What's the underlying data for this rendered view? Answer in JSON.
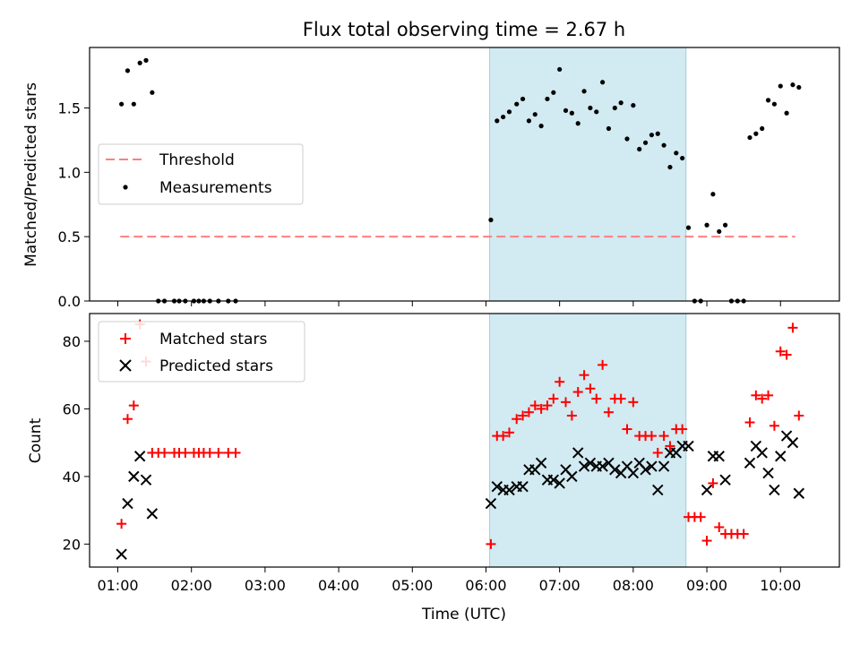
{
  "chart_data": [
    {
      "type": "scatter",
      "title": "Flux total observing time = 2.67 h",
      "xlabel": "",
      "ylabel": "Matched/Predicted stars",
      "ylim": [
        0,
        1.97
      ],
      "yticks": [
        0.0,
        0.5,
        1.0,
        1.5
      ],
      "ytick_labels": [
        "0.0",
        "0.5",
        "1.0",
        "1.5"
      ],
      "legend_position": "center-left",
      "legend": [
        "Threshold",
        "Measurements"
      ],
      "threshold": {
        "name": "Threshold",
        "y": 0.5,
        "x_start": "01:02",
        "x_end": "10:12",
        "color": "#ff7f7f"
      },
      "highlight_span": {
        "x_start": "06:03",
        "x_end": "08:43",
        "color": "#add8e6"
      },
      "series": [
        {
          "name": "Measurements",
          "color": "#000000",
          "marker": "dot",
          "points": [
            [
              "01:03",
              1.53
            ],
            [
              "01:08",
              1.79
            ],
            [
              "01:13",
              1.53
            ],
            [
              "01:18",
              1.85
            ],
            [
              "01:23",
              1.87
            ],
            [
              "01:28",
              1.62
            ],
            [
              "01:33",
              0
            ],
            [
              "01:38",
              0
            ],
            [
              "01:46",
              0
            ],
            [
              "01:50",
              0
            ],
            [
              "01:55",
              0
            ],
            [
              "02:02",
              0
            ],
            [
              "02:06",
              0
            ],
            [
              "02:10",
              0
            ],
            [
              "02:15",
              0
            ],
            [
              "02:22",
              0
            ],
            [
              "02:30",
              0
            ],
            [
              "02:36",
              0
            ],
            [
              "06:04",
              0.63
            ],
            [
              "06:09",
              1.4
            ],
            [
              "06:14",
              1.43
            ],
            [
              "06:19",
              1.47
            ],
            [
              "06:25",
              1.53
            ],
            [
              "06:30",
              1.57
            ],
            [
              "06:35",
              1.4
            ],
            [
              "06:40",
              1.45
            ],
            [
              "06:45",
              1.36
            ],
            [
              "06:50",
              1.57
            ],
            [
              "06:55",
              1.62
            ],
            [
              "07:00",
              1.8
            ],
            [
              "07:05",
              1.48
            ],
            [
              "07:10",
              1.46
            ],
            [
              "07:15",
              1.38
            ],
            [
              "07:20",
              1.63
            ],
            [
              "07:25",
              1.5
            ],
            [
              "07:30",
              1.47
            ],
            [
              "07:35",
              1.7
            ],
            [
              "07:40",
              1.34
            ],
            [
              "07:45",
              1.5
            ],
            [
              "07:50",
              1.54
            ],
            [
              "07:55",
              1.26
            ],
            [
              "08:00",
              1.52
            ],
            [
              "08:05",
              1.18
            ],
            [
              "08:10",
              1.23
            ],
            [
              "08:15",
              1.29
            ],
            [
              "08:20",
              1.3
            ],
            [
              "08:25",
              1.21
            ],
            [
              "08:30",
              1.04
            ],
            [
              "08:35",
              1.15
            ],
            [
              "08:40",
              1.11
            ],
            [
              "08:45",
              0.57
            ],
            [
              "08:50",
              0
            ],
            [
              "08:55",
              0
            ],
            [
              "09:00",
              0.59
            ],
            [
              "09:05",
              0.83
            ],
            [
              "09:10",
              0.54
            ],
            [
              "09:15",
              0.59
            ],
            [
              "09:20",
              0
            ],
            [
              "09:25",
              0
            ],
            [
              "09:30",
              0
            ],
            [
              "09:35",
              1.27
            ],
            [
              "09:40",
              1.3
            ],
            [
              "09:45",
              1.34
            ],
            [
              "09:50",
              1.56
            ],
            [
              "09:55",
              1.53
            ],
            [
              "10:00",
              1.67
            ],
            [
              "10:05",
              1.46
            ],
            [
              "10:10",
              1.68
            ],
            [
              "10:15",
              1.66
            ]
          ]
        }
      ]
    },
    {
      "type": "scatter",
      "title": "",
      "xlabel": "Time (UTC)",
      "ylabel": "Count",
      "xlim": [
        "00:37",
        "10:48"
      ],
      "xticks": [
        "01:00",
        "02:00",
        "03:00",
        "04:00",
        "05:00",
        "06:00",
        "07:00",
        "08:00",
        "09:00",
        "10:00"
      ],
      "ylim": [
        13.2,
        88.2
      ],
      "yticks": [
        20,
        40,
        60,
        80
      ],
      "ytick_labels": [
        "20",
        "40",
        "60",
        "80"
      ],
      "legend_position": "top-left",
      "legend": [
        "Matched stars",
        "Predicted stars"
      ],
      "highlight_span": {
        "x_start": "06:03",
        "x_end": "08:43",
        "color": "#add8e6"
      },
      "series": [
        {
          "name": "Matched stars",
          "color": "#ff0000",
          "marker": "plus",
          "points": [
            [
              "01:03",
              26
            ],
            [
              "01:08",
              57
            ],
            [
              "01:13",
              61
            ],
            [
              "01:18",
              85
            ],
            [
              "01:23",
              74
            ],
            [
              "01:28",
              47
            ],
            [
              "01:33",
              47
            ],
            [
              "01:38",
              47
            ],
            [
              "01:46",
              47
            ],
            [
              "01:50",
              47
            ],
            [
              "01:55",
              47
            ],
            [
              "02:02",
              47
            ],
            [
              "02:06",
              47
            ],
            [
              "02:10",
              47
            ],
            [
              "02:15",
              47
            ],
            [
              "02:22",
              47
            ],
            [
              "02:30",
              47
            ],
            [
              "02:36",
              47
            ],
            [
              "06:04",
              20
            ],
            [
              "06:09",
              52
            ],
            [
              "06:14",
              52
            ],
            [
              "06:19",
              53
            ],
            [
              "06:25",
              57
            ],
            [
              "06:30",
              58
            ],
            [
              "06:35",
              59
            ],
            [
              "06:40",
              61
            ],
            [
              "06:45",
              60
            ],
            [
              "06:50",
              61
            ],
            [
              "06:55",
              63
            ],
            [
              "07:00",
              68
            ],
            [
              "07:05",
              62
            ],
            [
              "07:10",
              58
            ],
            [
              "07:15",
              65
            ],
            [
              "07:20",
              70
            ],
            [
              "07:25",
              66
            ],
            [
              "07:30",
              63
            ],
            [
              "07:35",
              73
            ],
            [
              "07:40",
              59
            ],
            [
              "07:45",
              63
            ],
            [
              "07:50",
              63
            ],
            [
              "07:55",
              54
            ],
            [
              "08:00",
              62
            ],
            [
              "08:05",
              52
            ],
            [
              "08:10",
              52
            ],
            [
              "08:15",
              52
            ],
            [
              "08:20",
              47
            ],
            [
              "08:25",
              52
            ],
            [
              "08:30",
              49
            ],
            [
              "08:35",
              54
            ],
            [
              "08:40",
              54
            ],
            [
              "08:45",
              28
            ],
            [
              "08:50",
              28
            ],
            [
              "08:55",
              28
            ],
            [
              "09:00",
              21
            ],
            [
              "09:05",
              38
            ],
            [
              "09:10",
              25
            ],
            [
              "09:15",
              23
            ],
            [
              "09:20",
              23
            ],
            [
              "09:25",
              23
            ],
            [
              "09:30",
              23
            ],
            [
              "09:35",
              56
            ],
            [
              "09:40",
              64
            ],
            [
              "09:45",
              63
            ],
            [
              "09:50",
              64
            ],
            [
              "09:55",
              55
            ],
            [
              "10:00",
              77
            ],
            [
              "10:05",
              76
            ],
            [
              "10:10",
              84
            ],
            [
              "10:15",
              58
            ]
          ]
        },
        {
          "name": "Predicted stars",
          "color": "#000000",
          "marker": "x",
          "points": [
            [
              "01:03",
              17
            ],
            [
              "01:08",
              32
            ],
            [
              "01:13",
              40
            ],
            [
              "01:18",
              46
            ],
            [
              "01:23",
              39
            ],
            [
              "01:28",
              29
            ],
            [
              "06:04",
              32
            ],
            [
              "06:09",
              37
            ],
            [
              "06:14",
              36
            ],
            [
              "06:19",
              36
            ],
            [
              "06:25",
              37
            ],
            [
              "06:30",
              37
            ],
            [
              "06:35",
              42
            ],
            [
              "06:40",
              42
            ],
            [
              "06:45",
              44
            ],
            [
              "06:50",
              39
            ],
            [
              "06:55",
              39
            ],
            [
              "07:00",
              38
            ],
            [
              "07:05",
              42
            ],
            [
              "07:10",
              40
            ],
            [
              "07:15",
              47
            ],
            [
              "07:20",
              43
            ],
            [
              "07:25",
              44
            ],
            [
              "07:30",
              43
            ],
            [
              "07:35",
              43
            ],
            [
              "07:40",
              44
            ],
            [
              "07:45",
              42
            ],
            [
              "07:50",
              41
            ],
            [
              "07:55",
              43
            ],
            [
              "08:00",
              41
            ],
            [
              "08:05",
              44
            ],
            [
              "08:10",
              42
            ],
            [
              "08:15",
              43
            ],
            [
              "08:20",
              36
            ],
            [
              "08:25",
              43
            ],
            [
              "08:30",
              47
            ],
            [
              "08:35",
              47
            ],
            [
              "08:40",
              49
            ],
            [
              "08:45",
              49
            ],
            [
              "09:00",
              36
            ],
            [
              "09:05",
              46
            ],
            [
              "09:10",
              46
            ],
            [
              "09:15",
              39
            ],
            [
              "09:35",
              44
            ],
            [
              "09:40",
              49
            ],
            [
              "09:45",
              47
            ],
            [
              "09:50",
              41
            ],
            [
              "09:55",
              36
            ],
            [
              "10:00",
              46
            ],
            [
              "10:05",
              52
            ],
            [
              "10:10",
              50
            ],
            [
              "10:15",
              35
            ]
          ]
        }
      ]
    }
  ]
}
